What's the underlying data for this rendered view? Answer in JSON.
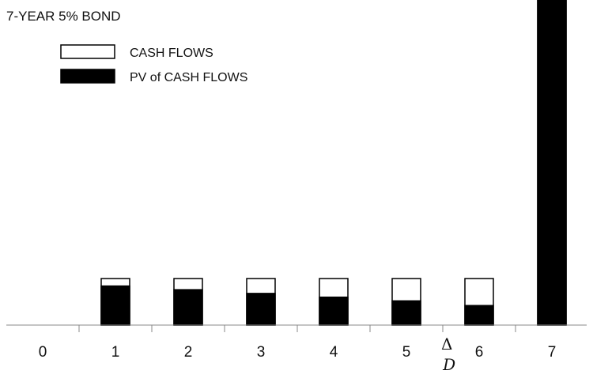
{
  "chart_data": {
    "type": "bar",
    "title": "7-YEAR 5% BOND",
    "xlabel": "",
    "ylabel": "",
    "categories": [
      "0",
      "1",
      "2",
      "3",
      "4",
      "5",
      "6",
      "7"
    ],
    "series": [
      {
        "name": "CASH FLOWS",
        "values": [
          0,
          5,
          5,
          5,
          5,
          5,
          5,
          105
        ]
      },
      {
        "name": "PV of CASH FLOWS",
        "values": [
          0,
          4.2,
          3.8,
          3.4,
          3.0,
          2.6,
          2.1,
          52.5
        ]
      }
    ],
    "ylim": [
      0,
      110
    ],
    "grid": false,
    "legend": "top-left",
    "annotations": [
      {
        "text_top": "Δ",
        "text_bottom": "D",
        "at_x": 5.6
      }
    ],
    "axis_break": {
      "at_x": 7,
      "from": 66,
      "to": 74
    },
    "colors": {
      "cash_flows": "#ffffff",
      "pv_of_cash_flows": "#000000",
      "outline": "#000000"
    }
  }
}
